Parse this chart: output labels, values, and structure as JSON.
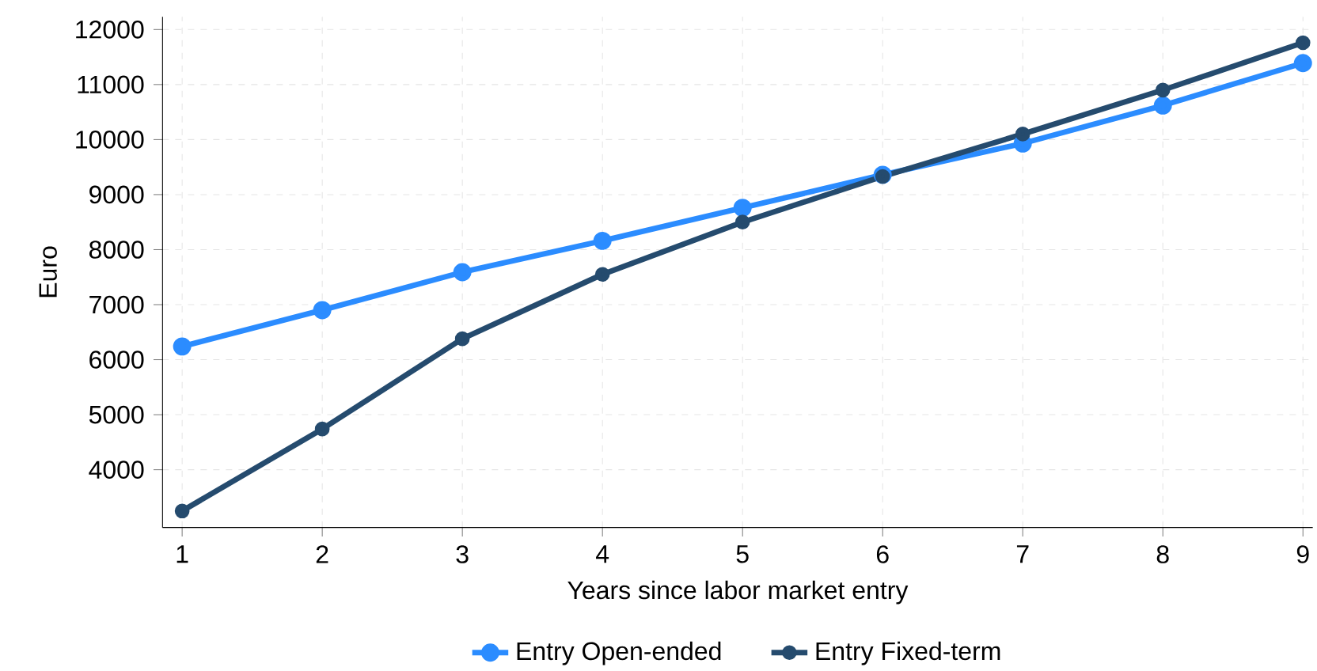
{
  "chart_data": {
    "type": "line",
    "xlabel": "Years since labor market entry",
    "ylabel": "Euro",
    "x": [
      1,
      2,
      3,
      4,
      5,
      6,
      7,
      8,
      9
    ],
    "series": [
      {
        "name": "Entry Open-ended",
        "color": "#2b8cff",
        "values": [
          6240,
          6900,
          7590,
          8160,
          8760,
          9360,
          9930,
          10620,
          11390
        ]
      },
      {
        "name": "Entry Fixed-term",
        "color": "#254b6e",
        "values": [
          3250,
          4740,
          6380,
          7550,
          8500,
          9330,
          10100,
          10900,
          11760
        ]
      }
    ],
    "xlim": [
      0.86,
      9.07
    ],
    "ylim": [
      2950,
      12230
    ],
    "xticks": [
      1,
      2,
      3,
      4,
      5,
      6,
      7,
      8,
      9
    ],
    "yticks": [
      4000,
      5000,
      6000,
      7000,
      8000,
      9000,
      10000,
      11000,
      12000
    ],
    "grid": true,
    "legend": "bottom",
    "marker": "circle",
    "line_style": "solid"
  }
}
